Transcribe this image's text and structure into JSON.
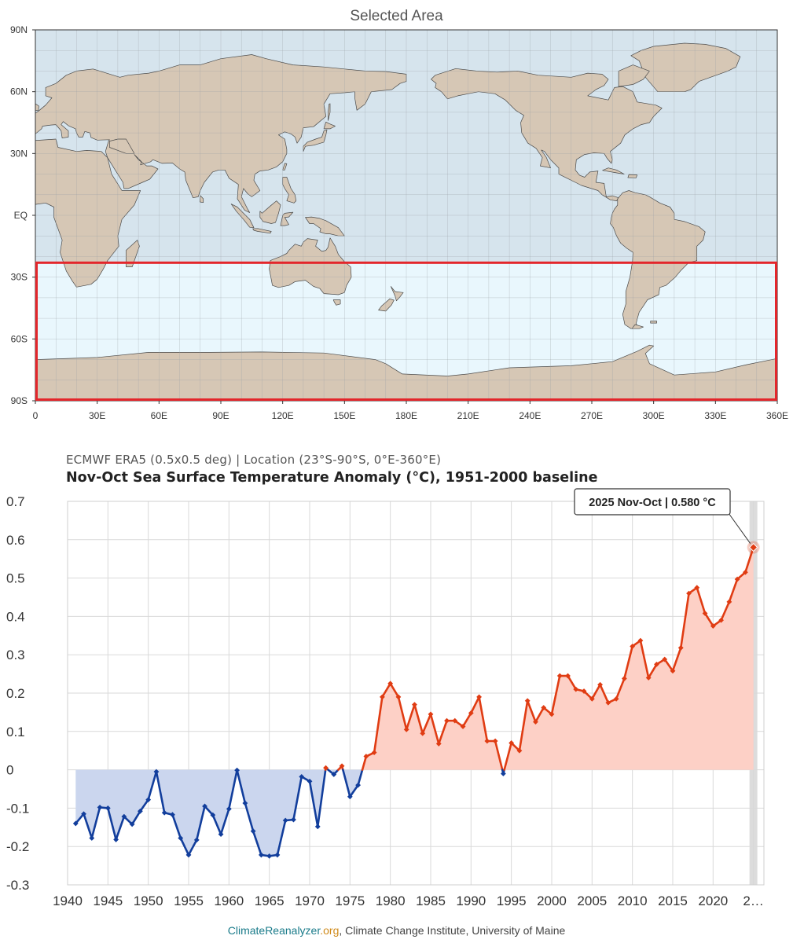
{
  "map": {
    "title": "Selected Area",
    "lat_labels": [
      "90N",
      "60N",
      "30N",
      "EQ",
      "30S",
      "60S",
      "90S"
    ],
    "lon_labels": [
      "0",
      "30E",
      "60E",
      "90E",
      "120E",
      "150E",
      "180E",
      "210E",
      "240E",
      "270E",
      "300E",
      "330E",
      "360E"
    ],
    "selection": {
      "lat_min": -90,
      "lat_max": -23,
      "lon_min": 0,
      "lon_max": 360
    },
    "colors": {
      "ocean": "#d6e4ed",
      "land": "#d6c7b5",
      "selected": "#e9f7fd",
      "box": "#e3262b"
    }
  },
  "header": {
    "subtitle": "ECMWF ERA5 (0.5x0.5 deg) | Location (23°S-90°S, 0°E-360°E)",
    "title": "Nov-Oct Sea Surface Temperature Anomaly (°C), 1951-2000 baseline"
  },
  "tooltip": {
    "text": "2025 Nov-Oct | 0.580 °C"
  },
  "footer": {
    "site_name": "ClimateReanalyzer",
    "site_tld": ".org",
    "institution": ", Climate Change Institute, University of Maine"
  },
  "chart_data": {
    "type": "line",
    "title": "Nov-Oct Sea Surface Temperature Anomaly (°C), 1951-2000 baseline",
    "xlabel": "",
    "ylabel": "",
    "ylim": [
      -0.3,
      0.7
    ],
    "yticks": [
      "0.7",
      "0.6",
      "0.5",
      "0.4",
      "0.3",
      "0.2",
      "0.1",
      "0",
      "-0.1",
      "-0.2",
      "-0.3"
    ],
    "xticks": [
      "1940",
      "1945",
      "1950",
      "1955",
      "1960",
      "1965",
      "1970",
      "1975",
      "1980",
      "1985",
      "1990",
      "1995",
      "2000",
      "2005",
      "2010",
      "2015",
      "2020",
      "2…"
    ],
    "x": [
      1941,
      1942,
      1943,
      1944,
      1945,
      1946,
      1947,
      1948,
      1949,
      1950,
      1951,
      1952,
      1953,
      1954,
      1955,
      1956,
      1957,
      1958,
      1959,
      1960,
      1961,
      1962,
      1963,
      1964,
      1965,
      1966,
      1967,
      1968,
      1969,
      1970,
      1971,
      1972,
      1973,
      1974,
      1975,
      1976,
      1977,
      1978,
      1979,
      1980,
      1981,
      1982,
      1983,
      1984,
      1985,
      1986,
      1987,
      1988,
      1989,
      1990,
      1991,
      1992,
      1993,
      1994,
      1995,
      1996,
      1997,
      1998,
      1999,
      2000,
      2001,
      2002,
      2003,
      2004,
      2005,
      2006,
      2007,
      2008,
      2009,
      2010,
      2011,
      2012,
      2013,
      2014,
      2015,
      2016,
      2017,
      2018,
      2019,
      2020,
      2021,
      2022,
      2023,
      2024,
      2025
    ],
    "values": [
      -0.14,
      -0.115,
      -0.178,
      -0.098,
      -0.1,
      -0.182,
      -0.122,
      -0.142,
      -0.108,
      -0.078,
      -0.005,
      -0.112,
      -0.117,
      -0.178,
      -0.222,
      -0.183,
      -0.095,
      -0.118,
      -0.168,
      -0.102,
      -0.001,
      -0.087,
      -0.16,
      -0.222,
      -0.225,
      -0.222,
      -0.132,
      -0.13,
      -0.018,
      -0.03,
      -0.148,
      0.005,
      -0.012,
      0.01,
      -0.07,
      -0.04,
      0.035,
      0.045,
      0.19,
      0.225,
      0.19,
      0.105,
      0.17,
      0.095,
      0.145,
      0.068,
      0.128,
      0.128,
      0.113,
      0.148,
      0.19,
      0.075,
      0.075,
      -0.01,
      0.07,
      0.05,
      0.18,
      0.125,
      0.162,
      0.145,
      0.245,
      0.245,
      0.21,
      0.205,
      0.185,
      0.222,
      0.175,
      0.185,
      0.238,
      0.322,
      0.337,
      0.24,
      0.275,
      0.288,
      0.258,
      0.318,
      0.46,
      0.475,
      0.408,
      0.375,
      0.39,
      0.438,
      0.497,
      0.515,
      0.58
    ],
    "positive_color": "#e03c13",
    "negative_color": "#123e9c",
    "positive_fill": "#fdd0c6",
    "negative_fill": "#cbd6ee",
    "highlight": {
      "year": 2025,
      "label": "2025 Nov-Oct",
      "value": 0.58,
      "unit": "°C"
    }
  }
}
